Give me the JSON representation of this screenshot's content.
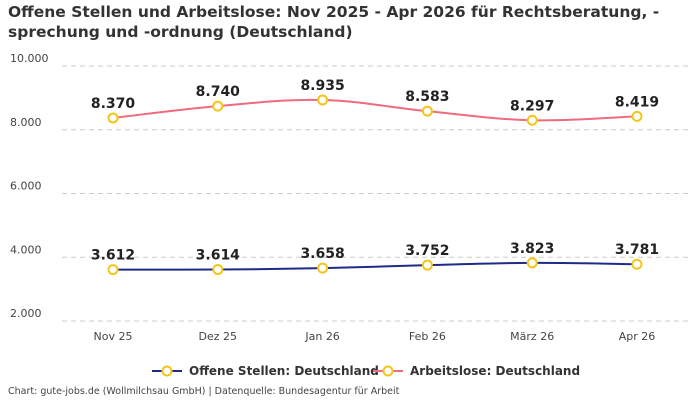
{
  "chart_data": {
    "type": "line",
    "title": "Offene Stellen und Arbeitslose: Nov 2025 - Apr 2026 für Rechtsberatung, -sprechung und -ordnung (Deutschland)",
    "categories": [
      "Nov 25",
      "Dez 25",
      "Jan 26",
      "Feb 26",
      "März 26",
      "Apr 26"
    ],
    "series": [
      {
        "name": "Offene Stellen: Deutschland",
        "values": [
          3612,
          3614,
          3658,
          3752,
          3823,
          3781
        ],
        "labels": [
          "3.612",
          "3.614",
          "3.658",
          "3.752",
          "3.823",
          "3.781"
        ],
        "color": "#1f2b8a"
      },
      {
        "name": "Arbeitslose: Deutschland",
        "values": [
          8370,
          8740,
          8935,
          8583,
          8297,
          8419
        ],
        "labels": [
          "8.370",
          "8.740",
          "8.935",
          "8.583",
          "8.297",
          "8.419"
        ],
        "color": "#ef6b7f"
      }
    ],
    "marker_color": "#f5c518",
    "y_ticks": [
      2000,
      4000,
      6000,
      8000,
      10000
    ],
    "y_tick_labels": [
      "2.000",
      "4.000",
      "6.000",
      "8.000",
      "10.000"
    ],
    "ylim": [
      2000,
      10000
    ],
    "grid": "horizontal dashed",
    "legend": "bottom",
    "smooth": true
  },
  "footer": "Chart: gute-jobs.de (Wollmilchsau GmbH) | Datenquelle: Bundesagentur für Arbeit"
}
